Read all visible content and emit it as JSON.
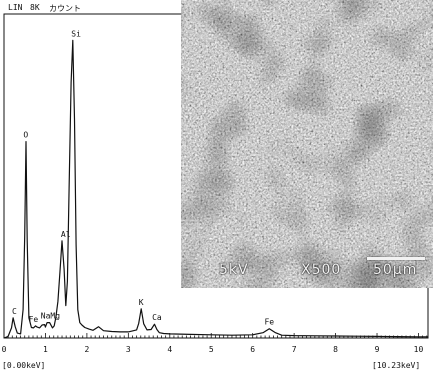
{
  "header": {
    "scale": "LIN",
    "full_scale": "8K",
    "unit": "カウント"
  },
  "range": {
    "min": "[0.00keV]",
    "max": "[10.23keV]"
  },
  "sem": {
    "kv": "5kV",
    "magnification": "X500",
    "scale_bar": "50µm"
  },
  "chart_data": {
    "type": "line",
    "title": "",
    "xlabel": "",
    "ylabel": "",
    "xlim": [
      0,
      10.23
    ],
    "ylim": [
      0,
      8000
    ],
    "xticks": [
      0,
      1,
      2,
      3,
      4,
      5,
      6,
      7,
      8,
      9,
      10
    ],
    "grid": false,
    "series": [
      {
        "x": [
          0.0,
          0.1,
          0.18,
          0.22,
          0.27,
          0.32,
          0.4,
          0.46,
          0.5,
          0.53,
          0.56,
          0.6,
          0.66,
          0.71,
          0.76,
          0.8,
          0.86,
          0.92,
          0.98,
          1.0,
          1.04,
          1.1,
          1.17,
          1.21,
          1.25,
          1.3,
          1.35,
          1.4,
          1.45,
          1.49,
          1.53,
          1.57,
          1.62,
          1.66,
          1.7,
          1.74,
          1.78,
          1.83,
          1.88,
          1.95,
          2.05,
          2.15,
          2.28,
          2.4,
          2.6,
          2.8,
          3.0,
          3.2,
          3.25,
          3.31,
          3.37,
          3.45,
          3.55,
          3.63,
          3.69,
          3.75,
          3.85,
          4.0,
          4.5,
          5.0,
          5.5,
          6.0,
          6.25,
          6.4,
          6.55,
          6.7,
          7.0,
          7.5,
          8.0,
          8.5,
          9.0,
          9.5,
          10.0,
          10.23
        ],
        "y": [
          0,
          40,
          250,
          500,
          280,
          120,
          100,
          700,
          2500,
          4850,
          2400,
          500,
          260,
          250,
          300,
          270,
          250,
          320,
          330,
          270,
          380,
          380,
          250,
          300,
          500,
          900,
          1650,
          2400,
          1700,
          800,
          1400,
          3700,
          6300,
          7350,
          5400,
          2300,
          700,
          380,
          320,
          260,
          220,
          190,
          280,
          180,
          160,
          150,
          150,
          200,
          360,
          720,
          350,
          200,
          210,
          340,
          210,
          130,
          110,
          100,
          90,
          80,
          70,
          80,
          130,
          230,
          130,
          70,
          60,
          55,
          50,
          45,
          40,
          35,
          30,
          30
        ]
      }
    ],
    "annotations": [
      {
        "text": "C",
        "x": 0.25,
        "y": 500
      },
      {
        "text": "O",
        "x": 0.525,
        "y": 4850
      },
      {
        "text": "Fe",
        "x": 0.71,
        "y": 300
      },
      {
        "text": "NaMg",
        "x": 1.12,
        "y": 380
      },
      {
        "text": "Al",
        "x": 1.49,
        "y": 2400
      },
      {
        "text": "Si",
        "x": 1.74,
        "y": 7350
      },
      {
        "text": "K",
        "x": 3.31,
        "y": 720
      },
      {
        "text": "Ca",
        "x": 3.69,
        "y": 340
      },
      {
        "text": "Fe",
        "x": 6.4,
        "y": 230
      }
    ]
  }
}
